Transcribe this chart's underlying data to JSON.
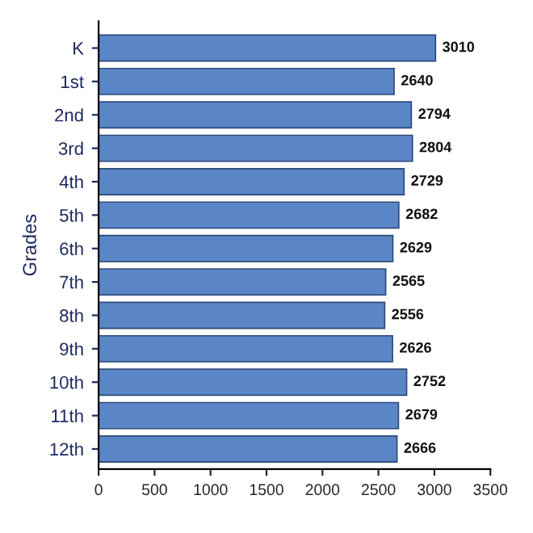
{
  "chart_data": {
    "type": "bar",
    "orientation": "horizontal",
    "ylabel": "Grades",
    "categories": [
      "K",
      "1st",
      "2nd",
      "3rd",
      "4th",
      "5th",
      "6th",
      "7th",
      "8th",
      "9th",
      "10th",
      "11th",
      "12th"
    ],
    "values": [
      3010,
      2640,
      2794,
      2804,
      2729,
      2682,
      2629,
      2565,
      2556,
      2626,
      2752,
      2679,
      2666
    ],
    "color": "#5a86c8",
    "data_labels": true,
    "xlim": [
      0,
      3500
    ],
    "xticks": [
      0,
      500,
      1000,
      1500,
      2000,
      2500,
      3000,
      3500
    ],
    "grid": false,
    "legend": false
  }
}
